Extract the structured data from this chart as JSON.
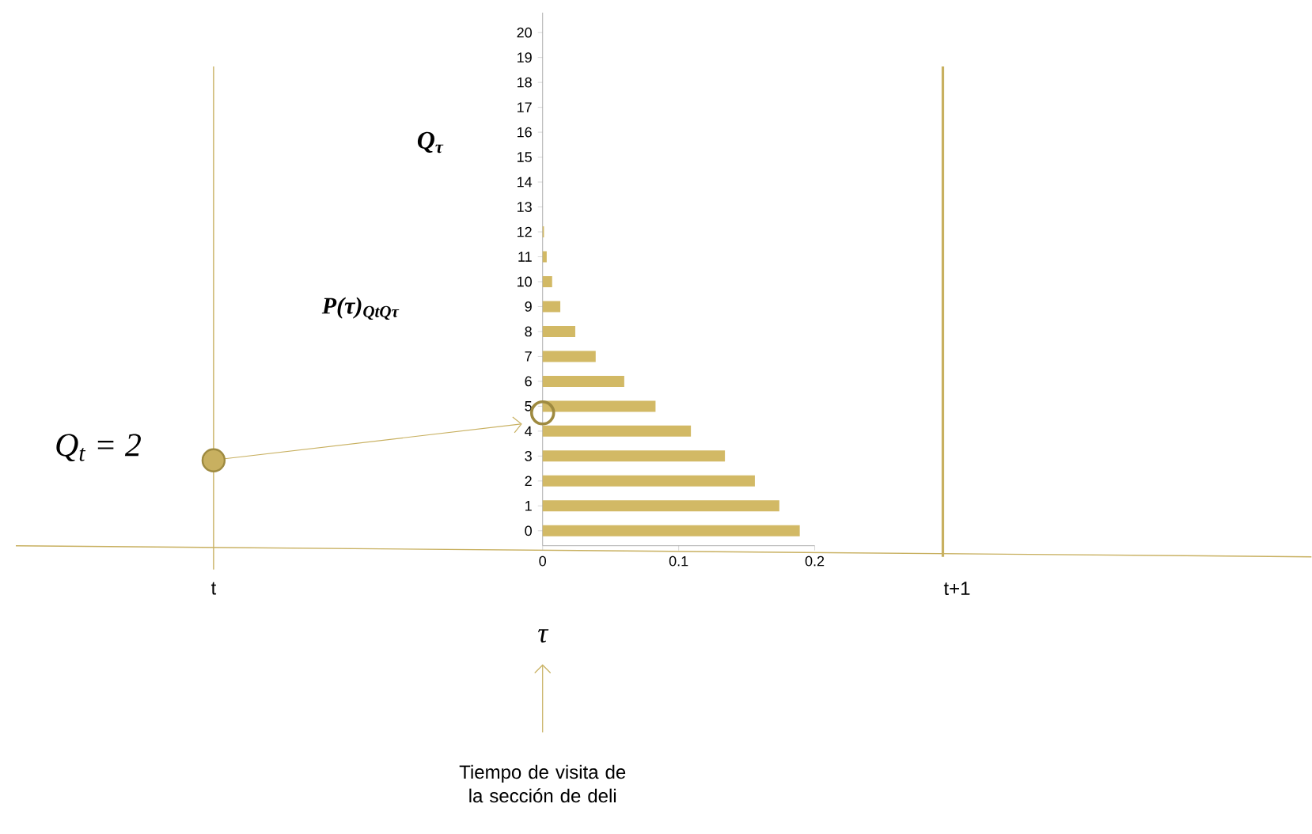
{
  "chart_data": {
    "type": "bar",
    "orientation": "horizontal",
    "categories": [
      "20",
      "19",
      "18",
      "17",
      "16",
      "15",
      "14",
      "13",
      "12",
      "11",
      "10",
      "9",
      "8",
      "7",
      "6",
      "5",
      "4",
      "3",
      "2",
      "1",
      "0"
    ],
    "values": [
      0,
      0,
      0,
      0,
      0,
      0,
      0,
      0,
      0.001,
      0.003,
      0.007,
      0.013,
      0.024,
      0.039,
      0.06,
      0.083,
      0.109,
      0.134,
      0.156,
      0.174,
      0.189
    ],
    "color": "#d2b965",
    "xlim": [
      0,
      0.2
    ],
    "xticks": [
      0,
      0.1,
      0.2
    ],
    "xlabel": "τ",
    "ylabel": "Q$_{τ}$",
    "annotations": [
      "P(τ)$_{QtQτ}$",
      "Q$_{t}$ = 2",
      "t",
      "t+1",
      "Tiempo de visita de la sección de deli"
    ]
  }
}
